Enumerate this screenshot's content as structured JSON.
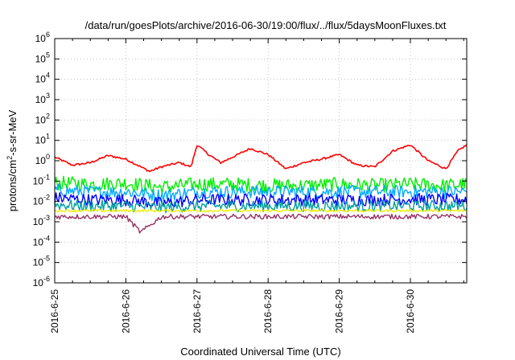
{
  "chart_data": {
    "type": "line",
    "title": "/data/run/goesPlots/archive/2016-06-30/19:00/flux/../flux/5daysMoonFluxes.txt",
    "xlabel": "Coordinated Universal Time (UTC)",
    "ylabel_parts": [
      "protons/cm",
      "2",
      "-s-sr-MeV"
    ],
    "yscale": "log",
    "ylim": [
      1e-06,
      1000000.0
    ],
    "y_ticks": [
      {
        "base": "10",
        "exp": "-6",
        "value": 1e-06
      },
      {
        "base": "10",
        "exp": "-5",
        "value": 1e-05
      },
      {
        "base": "10",
        "exp": "-4",
        "value": 0.0001
      },
      {
        "base": "10",
        "exp": "-3",
        "value": 0.001
      },
      {
        "base": "10",
        "exp": "-2",
        "value": 0.01
      },
      {
        "base": "10",
        "exp": "-1",
        "value": 0.1
      },
      {
        "base": "10",
        "exp": "0",
        "value": 1
      },
      {
        "base": "10",
        "exp": "1",
        "value": 10
      },
      {
        "base": "10",
        "exp": "2",
        "value": 100
      },
      {
        "base": "10",
        "exp": "3",
        "value": 1000
      },
      {
        "base": "10",
        "exp": "4",
        "value": 10000
      },
      {
        "base": "10",
        "exp": "5",
        "value": 100000
      },
      {
        "base": "10",
        "exp": "6",
        "value": 1000000
      }
    ],
    "x_ticks": [
      "2016-6-25",
      "2016-6-26",
      "2016-6-27",
      "2016-6-28",
      "2016-6-29",
      "2016-6-30"
    ],
    "xlim": [
      "2016-06-25 00:00",
      "2016-06-30 19:00"
    ],
    "grid": true,
    "series": [
      {
        "color": "#ff0000",
        "x": [
          "2016-06-25 00:00",
          "2016-06-25 06:00",
          "2016-06-25 12:00",
          "2016-06-25 18:00",
          "2016-06-26 00:00",
          "2016-06-26 04:00",
          "2016-06-26 08:00",
          "2016-06-26 12:00",
          "2016-06-26 18:00",
          "2016-06-26 22:00",
          "2016-06-27 00:00",
          "2016-06-27 04:00",
          "2016-06-27 08:00",
          "2016-06-27 12:00",
          "2016-06-27 18:00",
          "2016-06-28 00:00",
          "2016-06-28 06:00",
          "2016-06-28 12:00",
          "2016-06-28 18:00",
          "2016-06-29 00:00",
          "2016-06-29 06:00",
          "2016-06-29 12:00",
          "2016-06-29 18:00",
          "2016-06-30 00:00",
          "2016-06-30 06:00",
          "2016-06-30 12:00",
          "2016-06-30 16:00",
          "2016-06-30 19:00"
        ],
        "values": [
          1.5,
          0.6,
          0.8,
          1.8,
          1.2,
          0.6,
          0.3,
          0.5,
          0.8,
          0.5,
          6,
          2,
          0.8,
          1.5,
          4,
          2,
          0.4,
          0.8,
          1.2,
          2,
          0.6,
          0.5,
          3,
          6,
          1,
          0.4,
          3,
          6
        ]
      },
      {
        "color": "#00ee00",
        "x": [
          "2016-06-25 00:00",
          "2016-06-25 12:00",
          "2016-06-26 00:00",
          "2016-06-26 12:00",
          "2016-06-27 00:00",
          "2016-06-27 12:00",
          "2016-06-28 00:00",
          "2016-06-28 12:00",
          "2016-06-29 00:00",
          "2016-06-29 12:00",
          "2016-06-30 00:00",
          "2016-06-30 12:00",
          "2016-06-30 19:00"
        ],
        "values": [
          0.08,
          0.07,
          0.08,
          0.05,
          0.07,
          0.07,
          0.06,
          0.06,
          0.07,
          0.06,
          0.07,
          0.06,
          0.07
        ]
      },
      {
        "color": "#00aaff",
        "x": [
          "2016-06-25 00:00",
          "2016-06-25 12:00",
          "2016-06-26 00:00",
          "2016-06-26 12:00",
          "2016-06-27 00:00",
          "2016-06-27 12:00",
          "2016-06-28 00:00",
          "2016-06-28 12:00",
          "2016-06-29 00:00",
          "2016-06-29 12:00",
          "2016-06-30 00:00",
          "2016-06-30 12:00",
          "2016-06-30 19:00"
        ],
        "values": [
          0.035,
          0.03,
          0.03,
          0.02,
          0.03,
          0.03,
          0.03,
          0.03,
          0.03,
          0.03,
          0.03,
          0.03,
          0.03
        ]
      },
      {
        "color": "#0000ff",
        "x": [
          "2016-06-25 00:00",
          "2016-06-25 12:00",
          "2016-06-26 00:00",
          "2016-06-26 12:00",
          "2016-06-27 00:00",
          "2016-06-27 12:00",
          "2016-06-28 00:00",
          "2016-06-28 12:00",
          "2016-06-29 00:00",
          "2016-06-29 12:00",
          "2016-06-30 00:00",
          "2016-06-30 12:00",
          "2016-06-30 19:00"
        ],
        "values": [
          0.015,
          0.012,
          0.012,
          0.008,
          0.012,
          0.012,
          0.012,
          0.012,
          0.012,
          0.012,
          0.013,
          0.012,
          0.013
        ]
      },
      {
        "color": "#00a0a0",
        "x": [
          "2016-06-25 00:00",
          "2016-06-25 12:00",
          "2016-06-26 00:00",
          "2016-06-26 12:00",
          "2016-06-27 00:00",
          "2016-06-27 12:00",
          "2016-06-28 00:00",
          "2016-06-28 12:00",
          "2016-06-29 00:00",
          "2016-06-29 12:00",
          "2016-06-30 00:00",
          "2016-06-30 12:00",
          "2016-06-30 19:00"
        ],
        "values": [
          0.007,
          0.006,
          0.006,
          0.005,
          0.006,
          0.006,
          0.006,
          0.006,
          0.006,
          0.006,
          0.006,
          0.006,
          0.006
        ]
      },
      {
        "color": "#eeee00",
        "x": [
          "2016-06-25 00:00",
          "2016-06-25 12:00",
          "2016-06-26 00:00",
          "2016-06-26 12:00",
          "2016-06-27 00:00",
          "2016-06-27 12:00",
          "2016-06-28 00:00",
          "2016-06-28 12:00",
          "2016-06-29 00:00",
          "2016-06-29 12:00",
          "2016-06-30 00:00",
          "2016-06-30 12:00",
          "2016-06-30 19:00"
        ],
        "values": [
          0.0035,
          0.0035,
          0.0035,
          0.0035,
          0.0035,
          0.0035,
          0.0035,
          0.0035,
          0.0035,
          0.0035,
          0.0035,
          0.0035,
          0.0035
        ]
      },
      {
        "color": "#993366",
        "x": [
          "2016-06-25 00:00",
          "2016-06-25 12:00",
          "2016-06-26 00:00",
          "2016-06-26 05:00",
          "2016-06-26 12:00",
          "2016-06-27 00:00",
          "2016-06-27 12:00",
          "2016-06-28 00:00",
          "2016-06-28 12:00",
          "2016-06-29 00:00",
          "2016-06-29 12:00",
          "2016-06-30 00:00",
          "2016-06-30 12:00",
          "2016-06-30 19:00"
        ],
        "values": [
          0.0018,
          0.0018,
          0.0018,
          0.0003,
          0.0018,
          0.0018,
          0.0018,
          0.0018,
          0.0018,
          0.0018,
          0.0018,
          0.0018,
          0.0018,
          0.0018
        ]
      }
    ]
  }
}
